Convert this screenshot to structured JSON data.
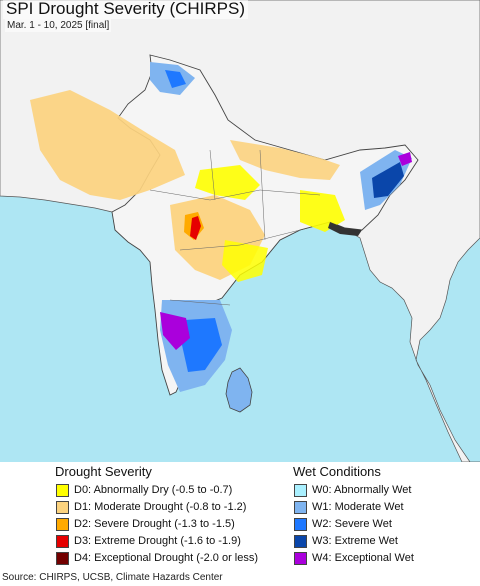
{
  "map": {
    "title": "SPI Drought Severity (CHIRPS)",
    "subtitle": "Mar. 1 - 10, 2025 [final]"
  },
  "colors": {
    "ocean": "#aee6f3",
    "land": "#f5f5f5",
    "neighbor_land": "#f2f2f2",
    "border": "#555555"
  },
  "legend": {
    "drought": {
      "heading": "Drought Severity",
      "items": [
        {
          "code": "D0",
          "label": "D0: Abnormally Dry (-0.5 to -0.7)",
          "color": "#ffff00"
        },
        {
          "code": "D1",
          "label": "D1: Moderate Drought (-0.8 to -1.2)",
          "color": "#fcd37f"
        },
        {
          "code": "D2",
          "label": "D2: Severe Drought (-1.3 to -1.5)",
          "color": "#ffaa00"
        },
        {
          "code": "D3",
          "label": "D3: Extreme Drought (-1.6 to -1.9)",
          "color": "#e60000"
        },
        {
          "code": "D4",
          "label": "D4: Exceptional Drought (-2.0 or less)",
          "color": "#730000"
        }
      ]
    },
    "wet": {
      "heading": "Wet Conditions",
      "items": [
        {
          "code": "W0",
          "label": "W0: Abnormally Wet",
          "color": "#aaf0ff"
        },
        {
          "code": "W1",
          "label": "W1: Moderate Wet",
          "color": "#7fb4f0"
        },
        {
          "code": "W2",
          "label": "W2: Severe Wet",
          "color": "#1e78ff"
        },
        {
          "code": "W3",
          "label": "W3: Extreme Wet",
          "color": "#0a46aa"
        },
        {
          "code": "W4",
          "label": "W4: Exceptional Wet",
          "color": "#aa00dc"
        }
      ]
    }
  },
  "source": "Source: CHIRPS, UCSB, Climate Hazards Center"
}
